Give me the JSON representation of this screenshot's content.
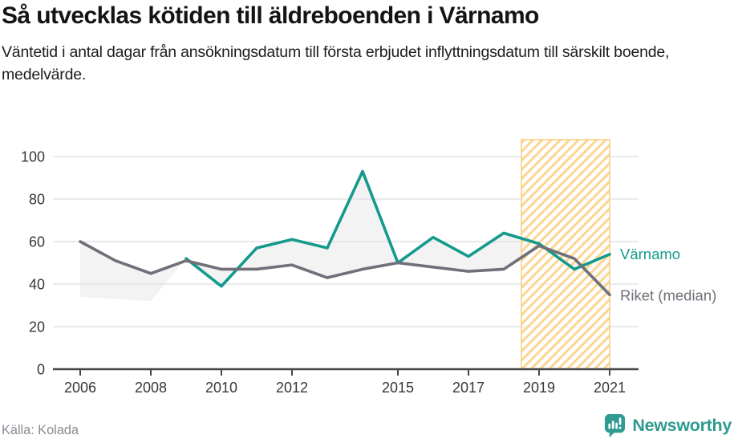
{
  "header": {
    "title": "Så utvecklas kötiden till äldreboenden i Värnamo",
    "subtitle": "Väntetid i antal dagar från ansökningsdatum till första erbjudet inflyttningsdatum till särskilt boende, medelvärde."
  },
  "chart_data": {
    "type": "line",
    "x": [
      2006,
      2007,
      2008,
      2009,
      2010,
      2011,
      2012,
      2013,
      2014,
      2015,
      2016,
      2017,
      2018,
      2019,
      2020,
      2021
    ],
    "series": [
      {
        "name": "Värnamo",
        "color": "#149a8c",
        "values": [
          null,
          null,
          null,
          52,
          39,
          57,
          61,
          57,
          93,
          50,
          62,
          53,
          64,
          59,
          47,
          54
        ]
      },
      {
        "name": "Riket (median)",
        "color": "#70707a",
        "values": [
          60,
          51,
          45,
          51,
          47,
          47,
          49,
          43,
          47,
          50,
          48,
          46,
          47,
          58,
          52,
          35
        ]
      }
    ],
    "ylim": [
      0,
      100
    ],
    "yticks": [
      0,
      20,
      40,
      60,
      80,
      100
    ],
    "xticks": [
      2006,
      2008,
      2010,
      2012,
      2015,
      2017,
      2019,
      2021
    ],
    "grid": true,
    "legend_position": "labels-at-line-ends",
    "highlight_band": {
      "from": 2018.5,
      "to": 2021,
      "style": "hatched",
      "stripe_color": "#fbd690",
      "border_color": "#f7c979"
    },
    "area_between_series": true,
    "area_color": "#f3f3f4",
    "area_fallback_points": [
      [
        2008,
        32
      ],
      [
        2006,
        34
      ]
    ]
  },
  "footer": {
    "source": "Källa: Kolada",
    "brand": "Newsworthy",
    "brand_color": "#2f9a90"
  }
}
